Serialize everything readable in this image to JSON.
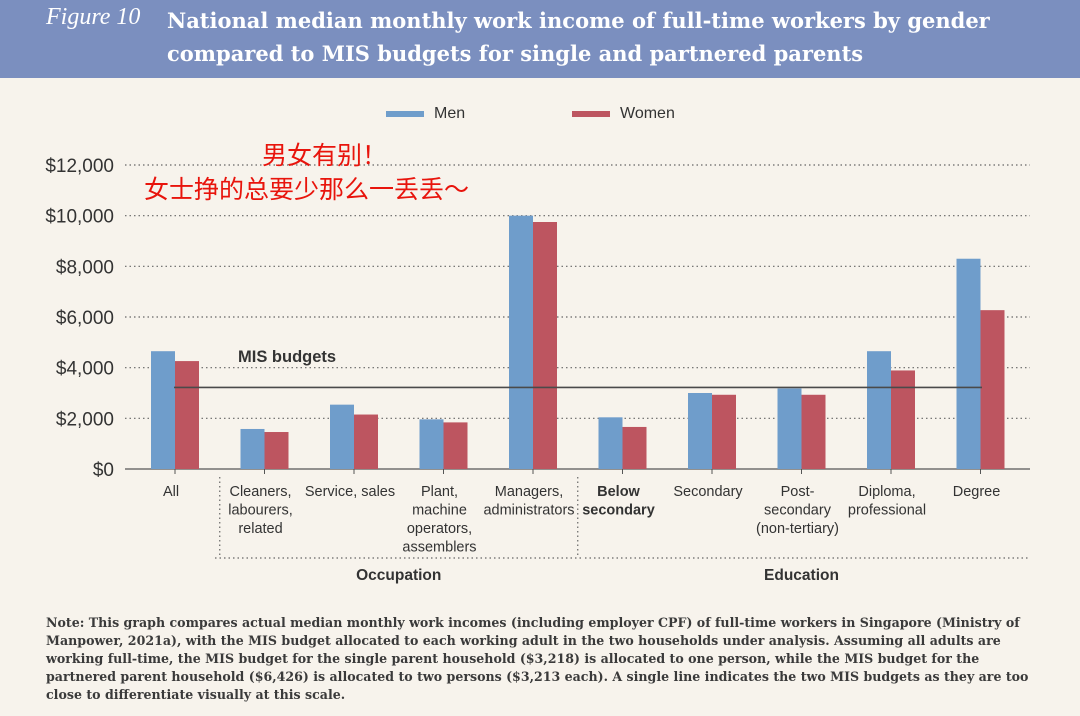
{
  "header": {
    "figure_label": "Figure 10",
    "title": "National median monthly work income of full-time workers by gender compared to MIS budgets for single and partnered parents"
  },
  "annotation": {
    "line1": "男女有别！",
    "line2": "女士挣的总要少那么一丢丢～"
  },
  "chart_data": {
    "type": "bar",
    "categories": [
      [
        "All"
      ],
      [
        "Cleaners,",
        "labourers,",
        "related"
      ],
      [
        "Service, sales"
      ],
      [
        "Plant,",
        "machine",
        "operators,",
        "assemblers"
      ],
      [
        "Managers,",
        "administrators"
      ],
      [
        "Below",
        "secondary"
      ],
      [
        "Secondary"
      ],
      [
        "Post-",
        "secondary",
        "(non-tertiary)"
      ],
      [
        "Diploma,",
        "professional"
      ],
      [
        "Degree"
      ]
    ],
    "series": [
      {
        "name": "Men",
        "color": "#6f9dcb",
        "values": [
          4650,
          1580,
          2540,
          1960,
          10000,
          2040,
          3000,
          3180,
          4650,
          8300
        ]
      },
      {
        "name": "Women",
        "color": "#bd5560",
        "values": [
          4260,
          1460,
          2150,
          1840,
          9750,
          1660,
          2930,
          2930,
          3890,
          6270
        ]
      }
    ],
    "reference_line": {
      "label": "MIS budgets",
      "value": 3218
    },
    "groups": [
      {
        "label": "Occupation",
        "from": 1,
        "to": 4
      },
      {
        "label": "Education",
        "from": 5,
        "to": 9
      }
    ],
    "y_ticks": [
      "$0",
      "$2,000",
      "$4,000",
      "$6,000",
      "$8,000",
      "$10,000",
      "$12,000"
    ],
    "y_tick_values": [
      0,
      2000,
      4000,
      6000,
      8000,
      10000,
      12000
    ],
    "ylim": [
      0,
      12000
    ],
    "grid": true,
    "legend_position": "top-center",
    "title": "",
    "xlabel": "",
    "ylabel": ""
  },
  "note": "Note: This graph compares actual median monthly work incomes (including employer CPF) of full-time workers in Singapore (Ministry of Manpower, 2021a), with the MIS budget allocated to each working adult in the two households under analysis. Assuming all adults are working full-time, the MIS budget for the single parent household ($3,218) is allocated to one person, while the MIS budget for the partnered parent household ($6,426) is allocated to two persons ($3,213 each). A single line indicates the two MIS budgets as they are too close to differentiate visually at this scale."
}
